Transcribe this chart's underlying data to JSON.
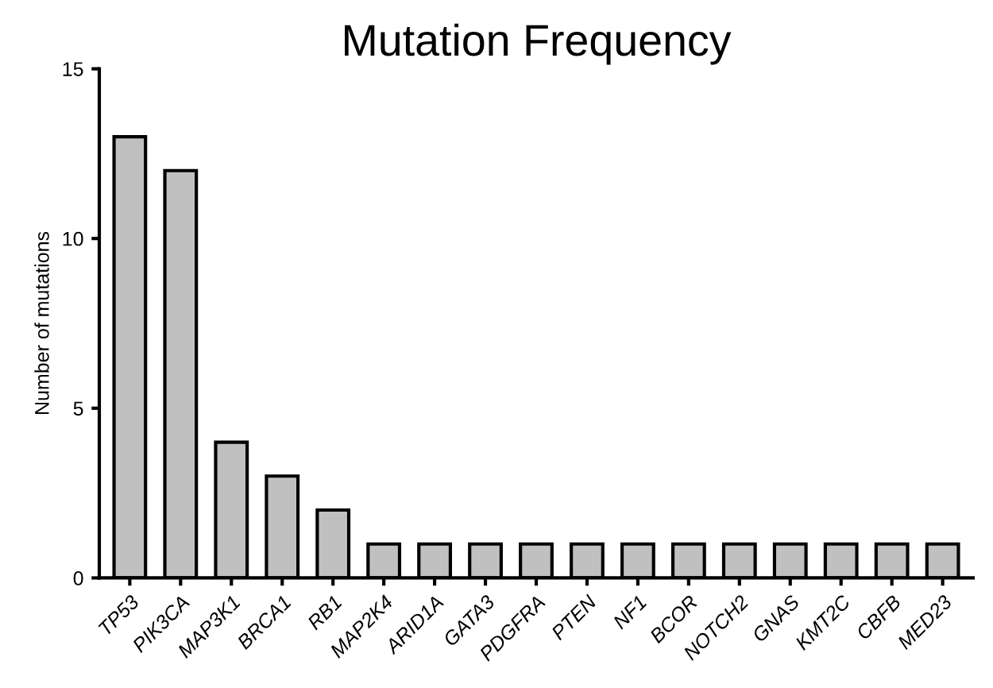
{
  "chart_data": {
    "type": "bar",
    "title": "Mutation Frequency",
    "ylabel": "Number of mutations",
    "categories": [
      "TP53",
      "PIK3CA",
      "MAP3K1",
      "BRCA1",
      "RB1",
      "MAP2K4",
      "ARID1A",
      "GATA3",
      "PDGFRA",
      "PTEN",
      "NF1",
      "BCOR",
      "NOTCH2",
      "GNAS",
      "KMT2C",
      "CBFB",
      "MED23"
    ],
    "values": [
      13,
      12,
      4,
      3,
      2,
      1,
      1,
      1,
      1,
      1,
      1,
      1,
      1,
      1,
      1,
      1,
      1
    ],
    "color": "#c0c0c0",
    "ylim": [
      0,
      15
    ],
    "yticks": [
      0,
      5,
      10,
      15
    ],
    "grid": false,
    "legend": false
  }
}
